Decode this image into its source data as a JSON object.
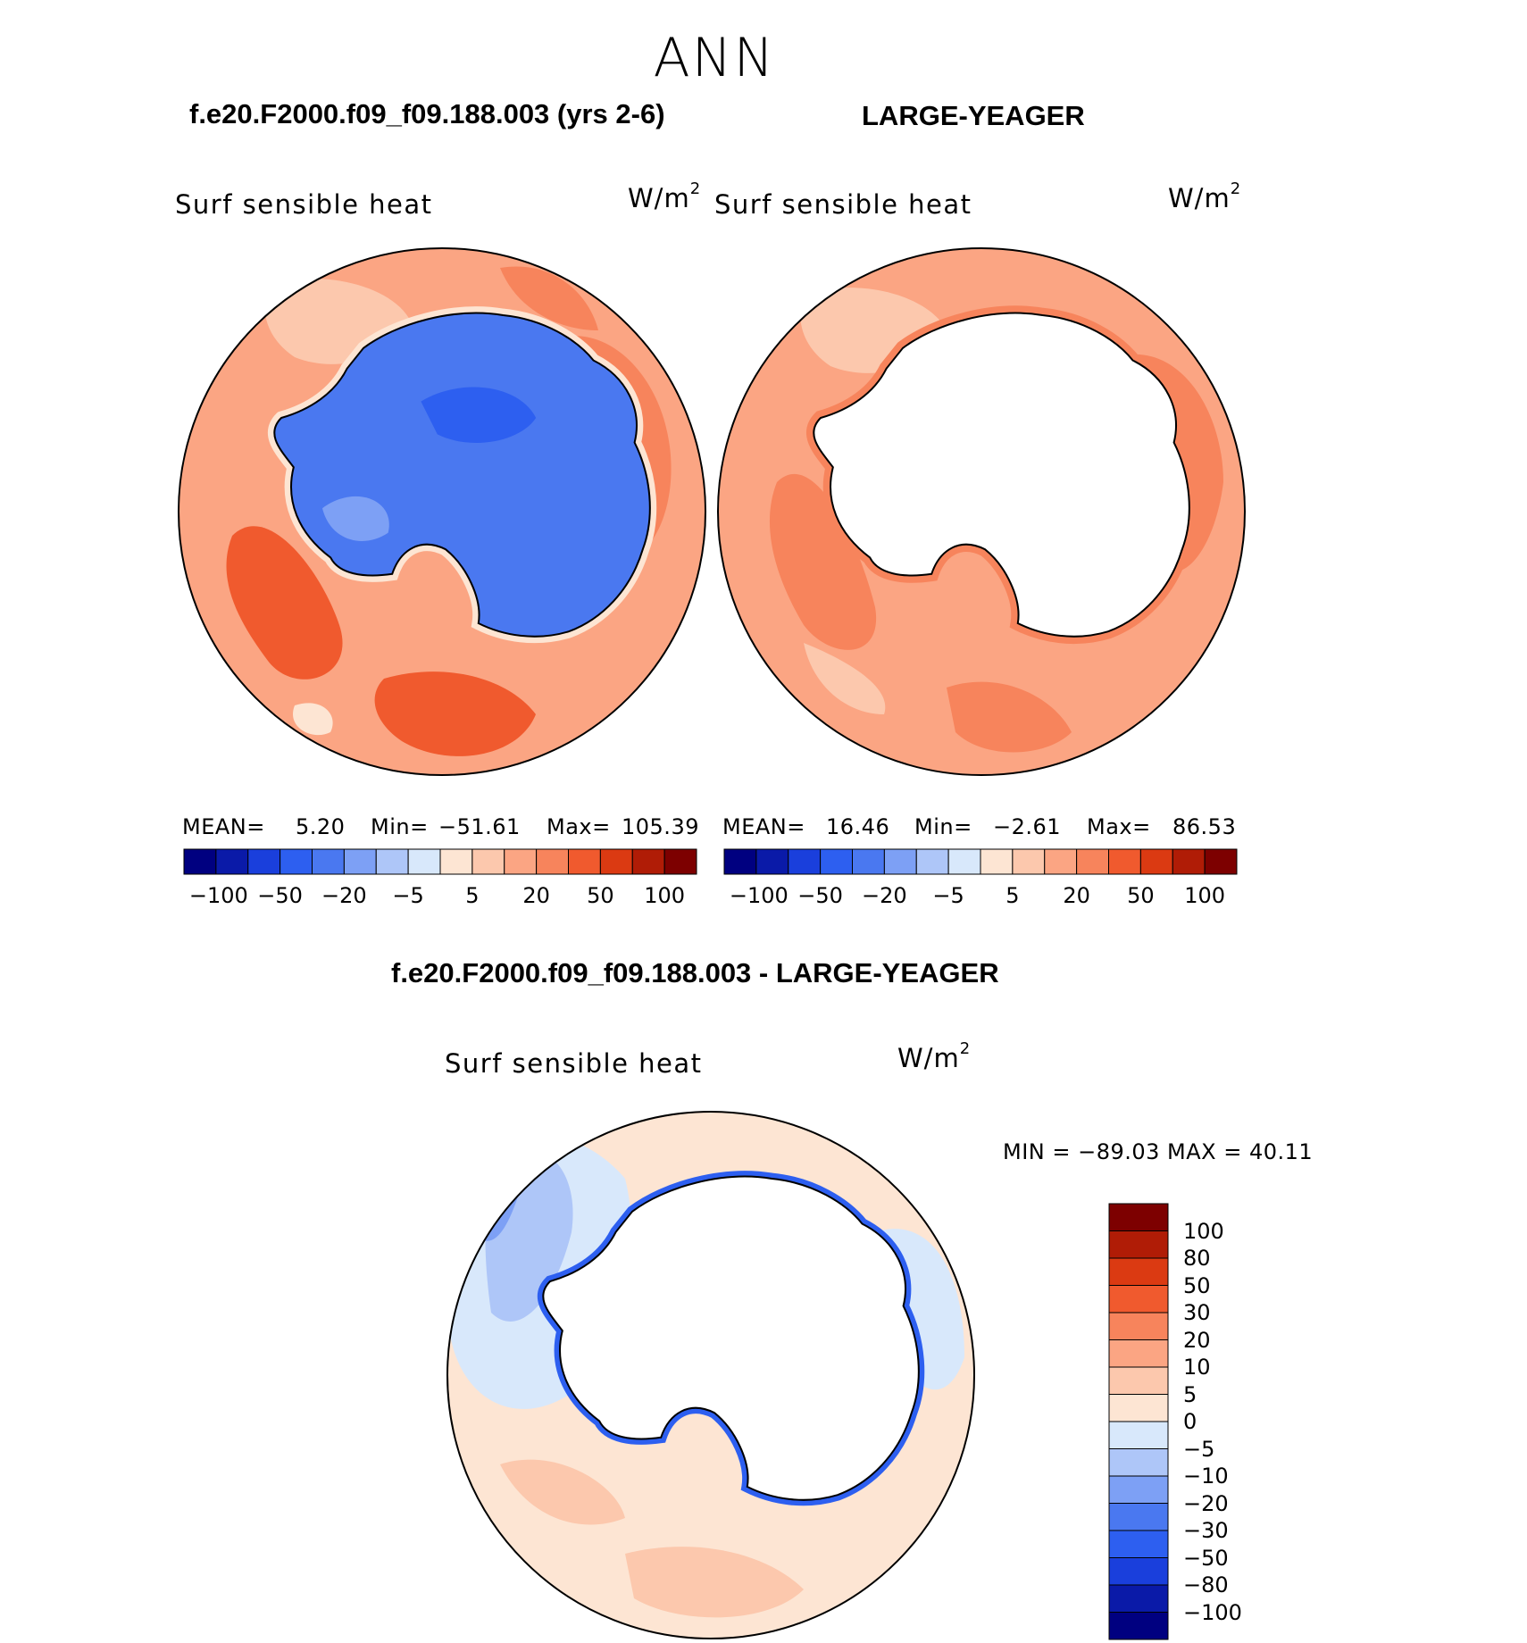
{
  "season": "ANN",
  "panels": {
    "test": {
      "title": "f.e20.F2000.f09_f09.188.003 (yrs 2-6)",
      "variable": "Surf sensible heat",
      "units_base": "W/m",
      "units_exp": "2",
      "stats": {
        "mean_label": "MEAN=",
        "mean": "5.20",
        "min_label": "Min=",
        "min": "−51.61",
        "max_label": "Max=",
        "max": "105.39"
      }
    },
    "ctrl": {
      "title": "LARGE-YEAGER",
      "variable": "Surf sensible heat",
      "units_base": "W/m",
      "units_exp": "2",
      "stats": {
        "mean_label": "MEAN=",
        "mean": "16.46",
        "min_label": "Min=",
        "min": "−2.61",
        "max_label": "Max=",
        "max": "86.53"
      }
    },
    "diff": {
      "title": "f.e20.F2000.f09_f09.188.003 - LARGE-YEAGER",
      "variable": "Surf sensible heat",
      "units_base": "W/m",
      "units_exp": "2",
      "minmax": "MIN = −89.03 MAX =   40.11"
    }
  },
  "colorbar_top": {
    "colors": [
      "#000080",
      "#0a1aa8",
      "#1a3fdc",
      "#2d5ff0",
      "#4a78f0",
      "#7da0f5",
      "#aec6f8",
      "#d8e8fb",
      "#fde5d3",
      "#fcc8ad",
      "#fba583",
      "#f7845c",
      "#f05a2e",
      "#db3a12",
      "#b01c06",
      "#7d0000"
    ],
    "tick_labels": [
      "−100",
      "−50",
      "−20",
      "−5",
      "5",
      "20",
      "50",
      "100"
    ]
  },
  "colorbar_diff": {
    "colors_top_to_bottom": [
      "#7d0000",
      "#b01c06",
      "#db3a12",
      "#f05a2e",
      "#f7845c",
      "#fba583",
      "#fcc8ad",
      "#fde5d3",
      "#d8e8fb",
      "#aec6f8",
      "#7da0f5",
      "#4a78f0",
      "#2d5ff0",
      "#1a3fdc",
      "#0a1aa8",
      "#000080"
    ],
    "tick_labels": [
      "100",
      "80",
      "50",
      "30",
      "20",
      "10",
      "5",
      "0",
      "−5",
      "−10",
      "−20",
      "−30",
      "−50",
      "−80",
      "−100"
    ]
  },
  "colors": {
    "ocean_light": "#fba583",
    "ocean_warm": "#f7845c",
    "ocean_hot": "#f05a2e",
    "ice_test": "#4a78f0",
    "ice_test_dark": "#2d5ff0",
    "ice_ctrl": "#ffffff",
    "diff_light": "#fde5d3",
    "diff_cool": "#d8e8fb",
    "diff_blue": "#aec6f8",
    "diff_edge": "#2d5ff0"
  }
}
